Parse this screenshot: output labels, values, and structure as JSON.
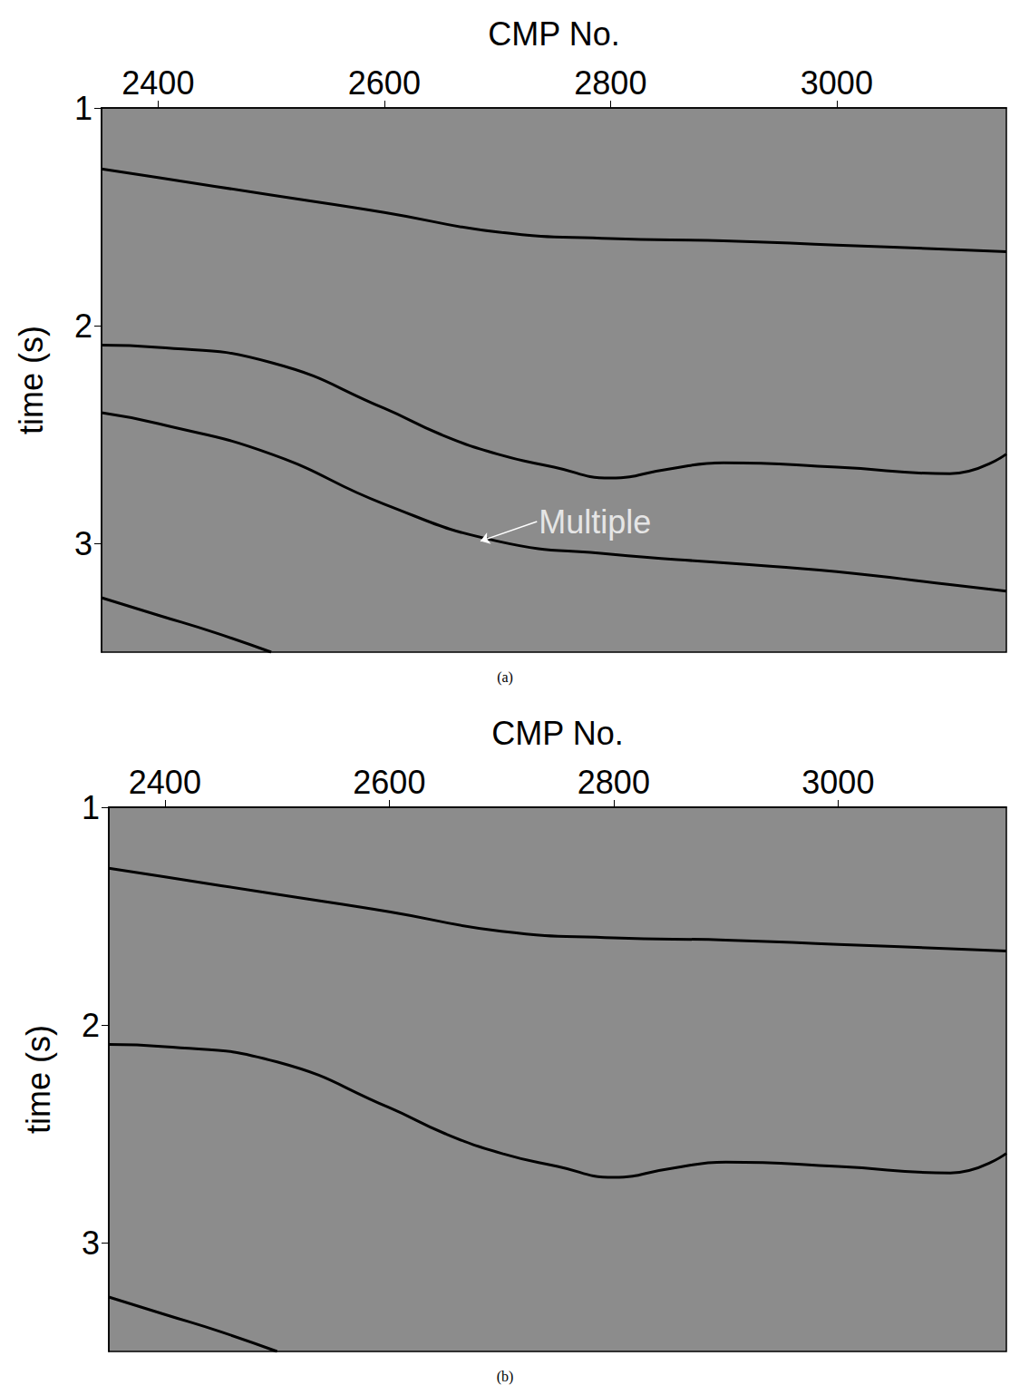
{
  "chart_data": [
    {
      "type": "line",
      "title": "(a)",
      "x_label": "CMP No.",
      "y_label": "time (s)",
      "xlim": [
        2350,
        3150
      ],
      "xticks": [
        2400,
        2600,
        2800,
        3000
      ],
      "ylim": [
        1,
        3.5
      ],
      "yticks": [
        1,
        2,
        3
      ],
      "grid": false,
      "series": [
        {
          "color": "#000000",
          "x": [
            2350,
            2400,
            2500,
            2600,
            2700,
            2800,
            2900,
            3000,
            3100,
            3150
          ],
          "values": [
            1.28,
            1.32,
            1.4,
            1.48,
            1.57,
            1.6,
            1.61,
            1.63,
            1.65,
            1.66
          ]
        },
        {
          "color": "#000000",
          "x": [
            2350,
            2400,
            2500,
            2600,
            2650,
            2700,
            2750,
            2800,
            2850,
            2900,
            3000,
            3100,
            3150
          ],
          "values": [
            2.09,
            2.1,
            2.17,
            2.38,
            2.5,
            2.59,
            2.65,
            2.7,
            2.66,
            2.63,
            2.65,
            2.68,
            2.59
          ]
        },
        {
          "color": "#000000",
          "x": [
            2350,
            2400,
            2500,
            2600,
            2700,
            2800,
            2900,
            3000,
            3100,
            3150
          ],
          "values": [
            2.4,
            2.45,
            2.59,
            2.82,
            2.99,
            3.05,
            3.09,
            3.13,
            3.19,
            3.22
          ]
        },
        {
          "color": "#000000",
          "x": [
            2350,
            2400,
            2450,
            2500
          ],
          "values": [
            3.25,
            3.33,
            3.41,
            3.5
          ]
        }
      ],
      "annotations": [
        {
          "text": "Multiple",
          "x": 2735,
          "y": 2.9,
          "target_x": 2685,
          "target_y": 2.99
        }
      ]
    },
    {
      "type": "line",
      "title": "(b)",
      "x_label": "CMP No.",
      "y_label": "time (s)",
      "xlim": [
        2350,
        3150
      ],
      "xticks": [
        2400,
        2600,
        2800,
        3000
      ],
      "ylim": [
        1,
        3.5
      ],
      "yticks": [
        1,
        2,
        3
      ],
      "grid": false,
      "series": [
        {
          "color": "#000000",
          "x": [
            2350,
            2400,
            2500,
            2600,
            2700,
            2800,
            2900,
            3000,
            3100,
            3150
          ],
          "values": [
            1.28,
            1.32,
            1.4,
            1.48,
            1.57,
            1.6,
            1.61,
            1.63,
            1.65,
            1.66
          ]
        },
        {
          "color": "#000000",
          "x": [
            2350,
            2400,
            2500,
            2600,
            2650,
            2700,
            2750,
            2800,
            2850,
            2900,
            3000,
            3100,
            3150
          ],
          "values": [
            2.09,
            2.1,
            2.17,
            2.38,
            2.5,
            2.59,
            2.65,
            2.7,
            2.66,
            2.63,
            2.65,
            2.68,
            2.59
          ]
        },
        {
          "color": "#000000",
          "x": [
            2350,
            2400,
            2450,
            2500
          ],
          "values": [
            3.25,
            3.33,
            3.41,
            3.5
          ]
        }
      ]
    }
  ]
}
